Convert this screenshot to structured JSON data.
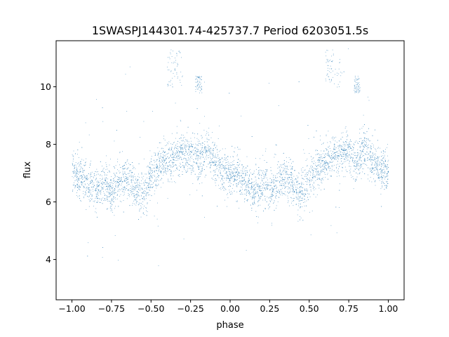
{
  "chart_data": {
    "type": "scatter",
    "title": "1SWASPJ144301.74-425737.7 Period 6203051.5s",
    "xlabel": "phase",
    "ylabel": "flux",
    "xlim": [
      -1.1,
      1.1
    ],
    "ylim": [
      2.6,
      11.6
    ],
    "xticks": [
      -1.0,
      -0.75,
      -0.5,
      -0.25,
      0.0,
      0.25,
      0.5,
      0.75,
      1.0
    ],
    "xtick_labels": [
      "−1.00",
      "−0.75",
      "−0.50",
      "−0.25",
      "0.00",
      "0.25",
      "0.50",
      "0.75",
      "1.00"
    ],
    "yticks": [
      4,
      6,
      8,
      10
    ],
    "ytick_labels": [
      "4",
      "6",
      "8",
      "10"
    ],
    "grid": false,
    "legend": "none",
    "marker_color": "#1f77b4",
    "series": [
      {
        "profile_phase": [
          0.0,
          0.05,
          0.1,
          0.15,
          0.2,
          0.25,
          0.3,
          0.35,
          0.4,
          0.45,
          0.5,
          0.55,
          0.6,
          0.65,
          0.7,
          0.75,
          0.8,
          0.85,
          0.9,
          0.95,
          1.0
        ],
        "profile_flux_mean": [
          7.1,
          6.9,
          6.6,
          6.4,
          6.6,
          6.4,
          6.7,
          6.9,
          6.5,
          6.3,
          6.9,
          7.2,
          7.4,
          7.6,
          7.7,
          7.7,
          7.5,
          7.8,
          7.4,
          7.1,
          7.0
        ],
        "scatter_spread": 0.6,
        "outlier_groups": [
          {
            "phase": [
              0.6,
              0.7
            ],
            "flux": [
              10.0,
              11.3
            ]
          },
          {
            "phase": [
              0.78,
              0.82
            ],
            "flux": [
              9.8,
              10.4
            ]
          },
          {
            "phase": [
              -0.4,
              -0.3
            ],
            "flux": [
              10.0,
              11.3
            ]
          },
          {
            "phase": [
              -0.22,
              -0.18
            ],
            "flux": [
              9.8,
              10.4
            ]
          }
        ]
      }
    ]
  }
}
